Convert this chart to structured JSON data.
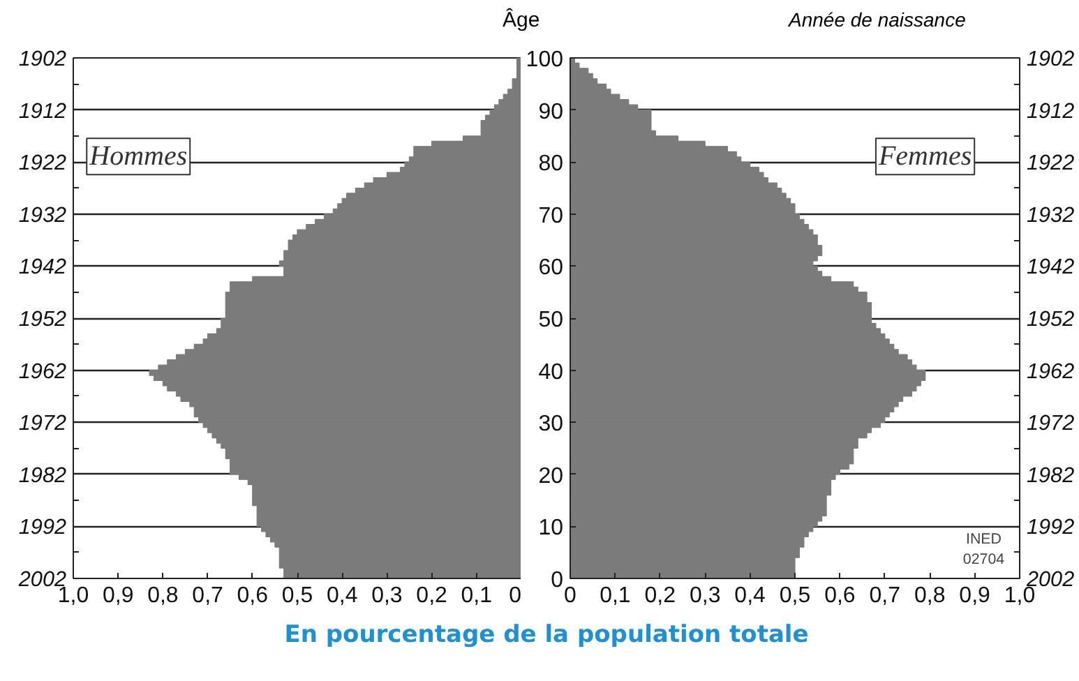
{
  "chart_data": [
    {
      "type": "bar",
      "orientation": "horizontal",
      "xlabel": "En pourcentage de la population totale",
      "annotations": [
        "Hommes"
      ],
      "color": "#7b7b7b",
      "grid": "y",
      "x": [
        2002,
        2001,
        2000,
        1999,
        1998,
        1997,
        1996,
        1995,
        1994,
        1993,
        1992,
        1991,
        1990,
        1989,
        1988,
        1987,
        1986,
        1985,
        1984,
        1983,
        1982,
        1981,
        1980,
        1979,
        1978,
        1977,
        1976,
        1975,
        1974,
        1973,
        1972,
        1971,
        1970,
        1969,
        1968,
        1967,
        1966,
        1965,
        1964,
        1963,
        1962,
        1961,
        1960,
        1959,
        1958,
        1957,
        1956,
        1955,
        1954,
        1953,
        1952,
        1951,
        1950,
        1949,
        1948,
        1947,
        1946,
        1945,
        1944,
        1943,
        1942,
        1941,
        1940,
        1939,
        1938,
        1937,
        1936,
        1935,
        1934,
        1933,
        1932,
        1931,
        1930,
        1929,
        1928,
        1927,
        1926,
        1925,
        1924,
        1923,
        1922,
        1921,
        1920,
        1919,
        1918,
        1917,
        1916,
        1915,
        1914,
        1913,
        1912,
        1911,
        1910,
        1909,
        1908,
        1907,
        1906,
        1905,
        1904,
        1903
      ],
      "values": [
        0.53,
        0.53,
        0.54,
        0.54,
        0.54,
        0.54,
        0.55,
        0.56,
        0.57,
        0.58,
        0.59,
        0.59,
        0.59,
        0.59,
        0.6,
        0.6,
        0.6,
        0.6,
        0.61,
        0.63,
        0.65,
        0.65,
        0.65,
        0.66,
        0.66,
        0.67,
        0.68,
        0.69,
        0.7,
        0.71,
        0.72,
        0.73,
        0.73,
        0.74,
        0.76,
        0.77,
        0.79,
        0.8,
        0.82,
        0.83,
        0.81,
        0.79,
        0.77,
        0.75,
        0.73,
        0.71,
        0.7,
        0.68,
        0.67,
        0.67,
        0.66,
        0.66,
        0.66,
        0.66,
        0.66,
        0.65,
        0.65,
        0.6,
        0.53,
        0.53,
        0.54,
        0.53,
        0.53,
        0.52,
        0.52,
        0.51,
        0.5,
        0.48,
        0.46,
        0.44,
        0.42,
        0.41,
        0.4,
        0.39,
        0.37,
        0.35,
        0.33,
        0.3,
        0.27,
        0.26,
        0.25,
        0.24,
        0.24,
        0.2,
        0.13,
        0.09,
        0.09,
        0.09,
        0.08,
        0.07,
        0.06,
        0.05,
        0.04,
        0.03,
        0.02,
        0.02,
        0.01,
        0.01,
        0.01,
        0.01
      ],
      "xlim": [
        1.0,
        0
      ],
      "xticks": [
        {
          "value": 1.0,
          "label": "1,0"
        },
        {
          "value": 0.9,
          "label": "0,9"
        },
        {
          "value": 0.8,
          "label": "0,8"
        },
        {
          "value": 0.7,
          "label": "0,7"
        },
        {
          "value": 0.6,
          "label": "0,6"
        },
        {
          "value": 0.5,
          "label": "0,5"
        },
        {
          "value": 0.4,
          "label": "0,4"
        },
        {
          "value": 0.3,
          "label": "0,3"
        },
        {
          "value": 0.2,
          "label": "0,2"
        },
        {
          "value": 0.1,
          "label": "0,1"
        },
        0
      ],
      "ylim": [
        2002,
        1902
      ],
      "yticks": [
        2002,
        {
          "value": 1997,
          "label": null
        },
        1992,
        {
          "value": 1987,
          "label": null
        },
        1982,
        {
          "value": 1977,
          "label": null
        },
        1972,
        {
          "value": 1967,
          "label": null
        },
        1962,
        {
          "value": 1957,
          "label": null
        },
        1952,
        {
          "value": 1947,
          "label": null
        },
        1942,
        {
          "value": 1937,
          "label": null
        },
        1932,
        {
          "value": 1927,
          "label": null
        },
        1922,
        {
          "value": 1917,
          "label": null
        },
        1912,
        {
          "value": 1907,
          "label": null
        },
        1902
      ]
    },
    {
      "type": "bar",
      "orientation": "horizontal",
      "ylabel": "Âge",
      "y2label": "Année de naissance",
      "annotations": [
        "Femmes",
        "INED\n02704"
      ],
      "color": "#7b7b7b",
      "grid": "y",
      "x": [
        0,
        1,
        2,
        3,
        4,
        5,
        6,
        7,
        8,
        9,
        10,
        11,
        12,
        13,
        14,
        15,
        16,
        17,
        18,
        19,
        20,
        21,
        22,
        23,
        24,
        25,
        26,
        27,
        28,
        29,
        30,
        31,
        32,
        33,
        34,
        35,
        36,
        37,
        38,
        39,
        40,
        41,
        42,
        43,
        44,
        45,
        46,
        47,
        48,
        49,
        50,
        51,
        52,
        53,
        54,
        55,
        56,
        57,
        58,
        59,
        60,
        61,
        62,
        63,
        64,
        65,
        66,
        67,
        68,
        69,
        70,
        71,
        72,
        73,
        74,
        75,
        76,
        77,
        78,
        79,
        80,
        81,
        82,
        83,
        84,
        85,
        86,
        87,
        88,
        89,
        90,
        91,
        92,
        93,
        94,
        95,
        96,
        97,
        98,
        99
      ],
      "values": [
        0.5,
        0.5,
        0.5,
        0.5,
        0.51,
        0.51,
        0.52,
        0.52,
        0.53,
        0.54,
        0.55,
        0.56,
        0.57,
        0.57,
        0.57,
        0.57,
        0.58,
        0.58,
        0.58,
        0.59,
        0.6,
        0.62,
        0.63,
        0.63,
        0.63,
        0.64,
        0.64,
        0.66,
        0.67,
        0.69,
        0.7,
        0.71,
        0.72,
        0.73,
        0.74,
        0.76,
        0.77,
        0.78,
        0.79,
        0.79,
        0.77,
        0.76,
        0.75,
        0.73,
        0.72,
        0.71,
        0.7,
        0.69,
        0.68,
        0.67,
        0.67,
        0.67,
        0.67,
        0.66,
        0.66,
        0.64,
        0.63,
        0.58,
        0.56,
        0.55,
        0.54,
        0.55,
        0.56,
        0.56,
        0.55,
        0.55,
        0.54,
        0.53,
        0.52,
        0.51,
        0.5,
        0.5,
        0.49,
        0.48,
        0.47,
        0.46,
        0.44,
        0.43,
        0.42,
        0.4,
        0.38,
        0.37,
        0.35,
        0.3,
        0.24,
        0.19,
        0.18,
        0.18,
        0.18,
        0.18,
        0.15,
        0.13,
        0.11,
        0.09,
        0.08,
        0.06,
        0.05,
        0.04,
        0.02,
        0.01
      ],
      "xlim": [
        0,
        1.0
      ],
      "xticks": [
        0,
        {
          "value": 0.1,
          "label": "0,1"
        },
        {
          "value": 0.2,
          "label": "0,2"
        },
        {
          "value": 0.3,
          "label": "0,3"
        },
        {
          "value": 0.4,
          "label": "0,4"
        },
        {
          "value": 0.5,
          "label": "0,5"
        },
        {
          "value": 0.6,
          "label": "0,6"
        },
        {
          "value": 0.7,
          "label": "0,7"
        },
        {
          "value": 0.8,
          "label": "0,8"
        },
        {
          "value": 0.9,
          "label": "0,9"
        },
        {
          "value": 1.0,
          "label": "1,0"
        }
      ],
      "ylim": [
        0,
        100
      ],
      "yticks": [
        0,
        10,
        20,
        30,
        40,
        50,
        60,
        70,
        80,
        90,
        100
      ],
      "y2lim": [
        2002,
        1902
      ],
      "y2ticks": [
        2002,
        {
          "value": 1997,
          "label": null
        },
        1992,
        {
          "value": 1987,
          "label": null
        },
        1982,
        {
          "value": 1977,
          "label": null
        },
        1972,
        {
          "value": 1967,
          "label": null
        },
        1962,
        {
          "value": 1957,
          "label": null
        },
        1952,
        {
          "value": 1947,
          "label": null
        },
        1942,
        {
          "value": 1937,
          "label": null
        },
        1932,
        {
          "value": 1927,
          "label": null
        },
        1922,
        {
          "value": 1917,
          "label": null
        },
        1912,
        {
          "value": 1907,
          "label": null
        },
        1902
      ]
    }
  ]
}
